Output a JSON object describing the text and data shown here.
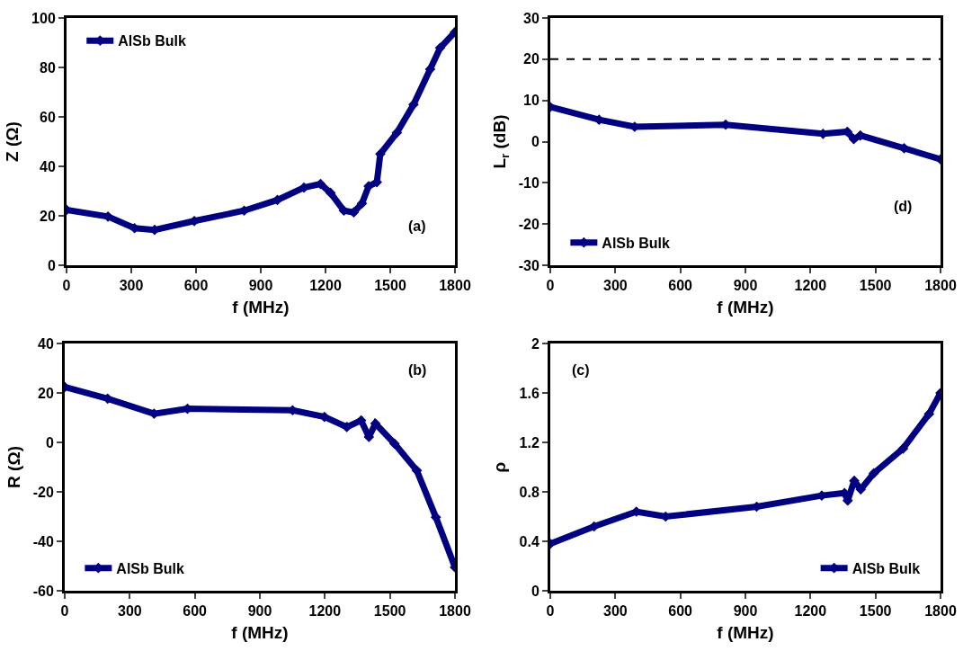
{
  "chart_data": [
    {
      "type": "line",
      "xlabel": "f (MHz)",
      "ylabel": "Z (Ω)",
      "xlim": [
        0,
        1800
      ],
      "xticks": [
        0,
        300,
        600,
        900,
        1200,
        1500,
        1800
      ],
      "ylim": [
        0,
        100
      ],
      "yticks": [
        0,
        20,
        40,
        60,
        80,
        100
      ],
      "grid": false,
      "legend": "top left",
      "marker": "diamond",
      "line_style": "solid",
      "annotations": [
        "(a)"
      ],
      "series": [
        {
          "name": "AlSb Bulk",
          "color": "#000080",
          "x": [
            0,
            192,
            315,
            408,
            592,
            823,
            977,
            1100,
            1177,
            1223,
            1285,
            1331,
            1369,
            1400,
            1438,
            1454,
            1531,
            1608,
            1685,
            1731,
            1800
          ],
          "values": [
            22.4,
            19.7,
            15,
            14.3,
            17.9,
            22.1,
            26.4,
            31.4,
            32.9,
            29.3,
            22.1,
            21.4,
            25,
            32,
            33.6,
            45,
            53.6,
            65,
            79.3,
            87.9,
            94.3
          ]
        }
      ]
    },
    {
      "type": "line",
      "xlabel": "f (MHz)",
      "ylabel": "L$_{r}$ (dB)",
      "xlim": [
        0,
        1800
      ],
      "xticks": [
        0,
        300,
        600,
        900,
        1200,
        1500,
        1800
      ],
      "ylim": [
        -30,
        30
      ],
      "yticks": [
        -30,
        -20,
        -10,
        0,
        10,
        20,
        30
      ],
      "grid": false,
      "legend": "bottom left",
      "marker": "diamond",
      "line_style": "solid",
      "annotations": [
        "(d)"
      ],
      "ref_lines": [
        {
          "axis": "y",
          "value": 20,
          "color": "#000000",
          "line_style": "dashed"
        }
      ],
      "series": [
        {
          "name": "AlSb Bulk",
          "color": "#000080",
          "x": [
            0,
            225,
            389,
            809,
            1258,
            1370,
            1400,
            1430,
            1632,
            1800
          ],
          "values": [
            8.4,
            5.3,
            3.6,
            4.1,
            1.9,
            2.4,
            0.6,
            1.5,
            -1.6,
            -4.3
          ]
        }
      ]
    },
    {
      "type": "line",
      "xlabel": "f (MHz)",
      "ylabel": "R (Ω)",
      "xlim": [
        0,
        1800
      ],
      "xticks": [
        0,
        300,
        600,
        900,
        1200,
        1500,
        1800
      ],
      "ylim": [
        -60,
        40
      ],
      "yticks": [
        -60,
        -40,
        -20,
        0,
        20,
        40
      ],
      "grid": false,
      "legend": "bottom left",
      "marker": "diamond",
      "line_style": "solid",
      "annotations": [
        "(b)"
      ],
      "series": [
        {
          "name": "AlSb Bulk",
          "color": "#000080",
          "x": [
            0,
            198,
            412,
            566,
            1051,
            1198,
            1301,
            1367,
            1403,
            1433,
            1521,
            1624,
            1712,
            1800
          ],
          "values": [
            22.4,
            17.7,
            11.6,
            13.6,
            13,
            10.3,
            6.2,
            8.9,
            2.2,
            7.6,
            -0.5,
            -11.4,
            -30.3,
            -50.5
          ]
        }
      ]
    },
    {
      "type": "line",
      "xlabel": "f (MHz)",
      "ylabel": "ρ",
      "xlim": [
        0,
        1800
      ],
      "xticks": [
        0,
        300,
        600,
        900,
        1200,
        1500,
        1800
      ],
      "ylim": [
        0,
        2
      ],
      "yticks": [
        0,
        0.4,
        0.8,
        1.2,
        1.6,
        2
      ],
      "grid": false,
      "legend": "bottom right",
      "marker": "diamond",
      "line_style": "solid",
      "annotations": [
        "(c)"
      ],
      "series": [
        {
          "name": "AlSb Bulk",
          "color": "#000080",
          "x": [
            0,
            202,
            397,
            532,
            952,
            1252,
            1357,
            1372,
            1402,
            1432,
            1492,
            1627,
            1747,
            1800
          ],
          "values": [
            0.38,
            0.52,
            0.64,
            0.6,
            0.68,
            0.77,
            0.79,
            0.73,
            0.89,
            0.82,
            0.95,
            1.15,
            1.43,
            1.6
          ]
        }
      ]
    }
  ]
}
